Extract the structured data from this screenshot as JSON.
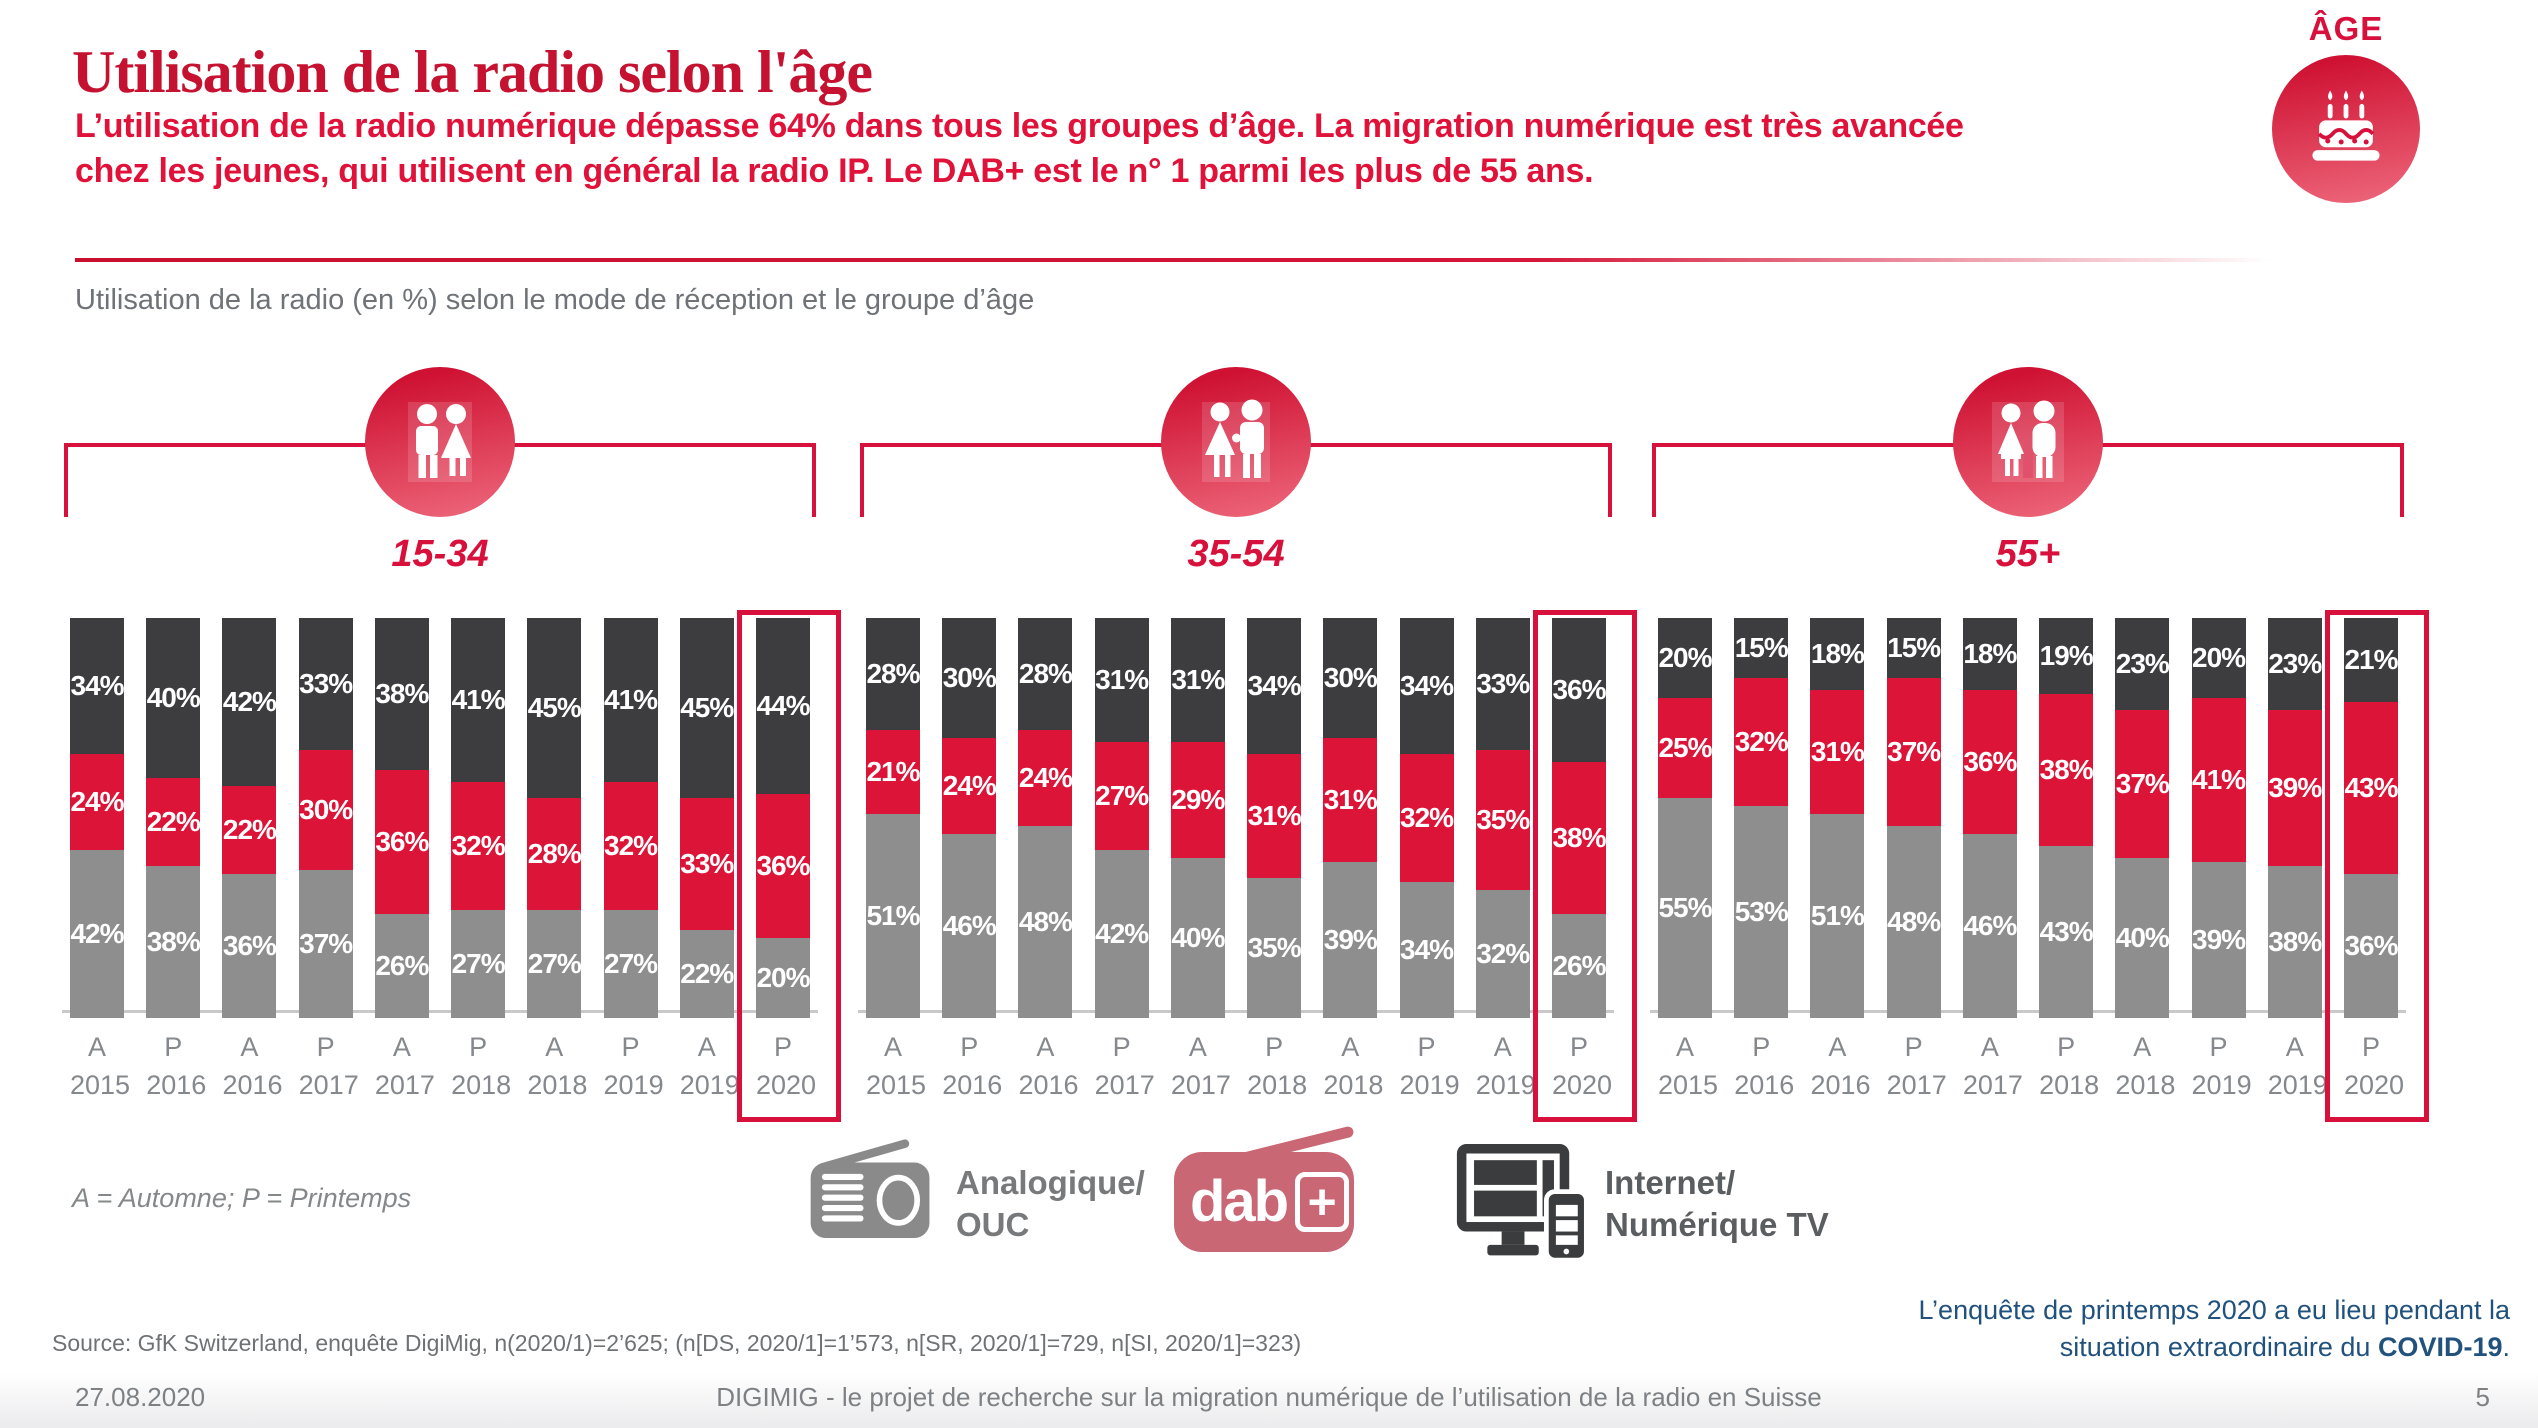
{
  "header": {
    "title": "Utilisation de la radio selon l'âge",
    "subtitle_line1": "L’utilisation de la radio numérique dépasse 64% dans tous les groupes d’âge. La migration numérique est très avancée",
    "subtitle_line2": "chez les jeunes, qui utilisent en général la radio IP. Le DAB+ est le n° 1 parmi les plus de 55 ans.",
    "age_badge_label": "ÂGE"
  },
  "chart_heading": "Utilisation de la radio (en %) selon le mode de réception et le groupe d’âge",
  "seasons_note": "A = Automne; P = Printemps",
  "legend": {
    "analog": {
      "line1": "Analogique/",
      "line2": "OUC"
    },
    "dab": {
      "text": "dab",
      "plus": "+"
    },
    "internet": {
      "line1": "Internet/",
      "line2": "Numérique TV"
    }
  },
  "covid_note": {
    "line1": "L’enquête de printemps 2020 a eu lieu pendant la",
    "line2_prefix": "situation extraordinaire du ",
    "line2_bold": "COVID-19",
    "line2_suffix": "."
  },
  "source": "Source: GfK Switzerland, enquête DigiMig, n(2020/1)=2’625; (n[DS, 2020/1]=1’573, n[SR, 2020/1]=729, n[SI, 2020/1]=323)",
  "footer": {
    "date": "27.08.2020",
    "project": "DIGIMIG - le projet de recherche sur la migration numérique de l’utilisation de la radio en Suisse",
    "page_number": "5"
  },
  "chart_data": {
    "type": "bar",
    "stacked": true,
    "unit": "%",
    "ylim": [
      0,
      100
    ],
    "categories": [
      {
        "season": "A",
        "year": "2015"
      },
      {
        "season": "P",
        "year": "2016"
      },
      {
        "season": "A",
        "year": "2016"
      },
      {
        "season": "P",
        "year": "2017"
      },
      {
        "season": "A",
        "year": "2017"
      },
      {
        "season": "P",
        "year": "2018"
      },
      {
        "season": "A",
        "year": "2018"
      },
      {
        "season": "P",
        "year": "2019"
      },
      {
        "season": "A",
        "year": "2019"
      },
      {
        "season": "P",
        "year": "2020"
      }
    ],
    "highlight_category": "P 2020",
    "colors": {
      "analog": "#8e8e8e",
      "dab": "#dc1438",
      "internet": "#3d3d40"
    },
    "series_order_bottom_to_top": [
      "analog",
      "dab",
      "internet"
    ],
    "series_names": {
      "analog": "Analogique/OUC",
      "dab": "DAB+",
      "internet": "Internet/Numérique TV"
    },
    "groups": [
      {
        "label": "15-34",
        "series": [
          {
            "key": "analog",
            "name": "Analogique/OUC",
            "values": [
              42,
              38,
              36,
              37,
              26,
              27,
              27,
              27,
              22,
              20
            ]
          },
          {
            "key": "dab",
            "name": "DAB+",
            "values": [
              24,
              22,
              22,
              30,
              36,
              32,
              28,
              32,
              33,
              36
            ]
          },
          {
            "key": "internet",
            "name": "Internet/Numérique TV",
            "values": [
              34,
              40,
              42,
              33,
              38,
              41,
              45,
              41,
              45,
              44
            ]
          }
        ]
      },
      {
        "label": "35-54",
        "series": [
          {
            "key": "analog",
            "name": "Analogique/OUC",
            "values": [
              51,
              46,
              48,
              42,
              40,
              35,
              39,
              34,
              32,
              26
            ]
          },
          {
            "key": "dab",
            "name": "DAB+",
            "values": [
              21,
              24,
              24,
              27,
              29,
              31,
              31,
              32,
              35,
              38
            ]
          },
          {
            "key": "internet",
            "name": "Internet/Numérique TV",
            "values": [
              28,
              30,
              28,
              31,
              31,
              34,
              30,
              34,
              33,
              36
            ]
          }
        ]
      },
      {
        "label": "55+",
        "series": [
          {
            "key": "analog",
            "name": "Analogique/OUC",
            "values": [
              55,
              53,
              51,
              48,
              46,
              43,
              40,
              39,
              38,
              36
            ]
          },
          {
            "key": "dab",
            "name": "DAB+",
            "values": [
              25,
              32,
              31,
              37,
              36,
              38,
              37,
              41,
              39,
              43
            ]
          },
          {
            "key": "internet",
            "name": "Internet/Numérique TV",
            "values": [
              20,
              15,
              18,
              15,
              18,
              19,
              23,
              20,
              23,
              21
            ]
          }
        ]
      }
    ]
  }
}
